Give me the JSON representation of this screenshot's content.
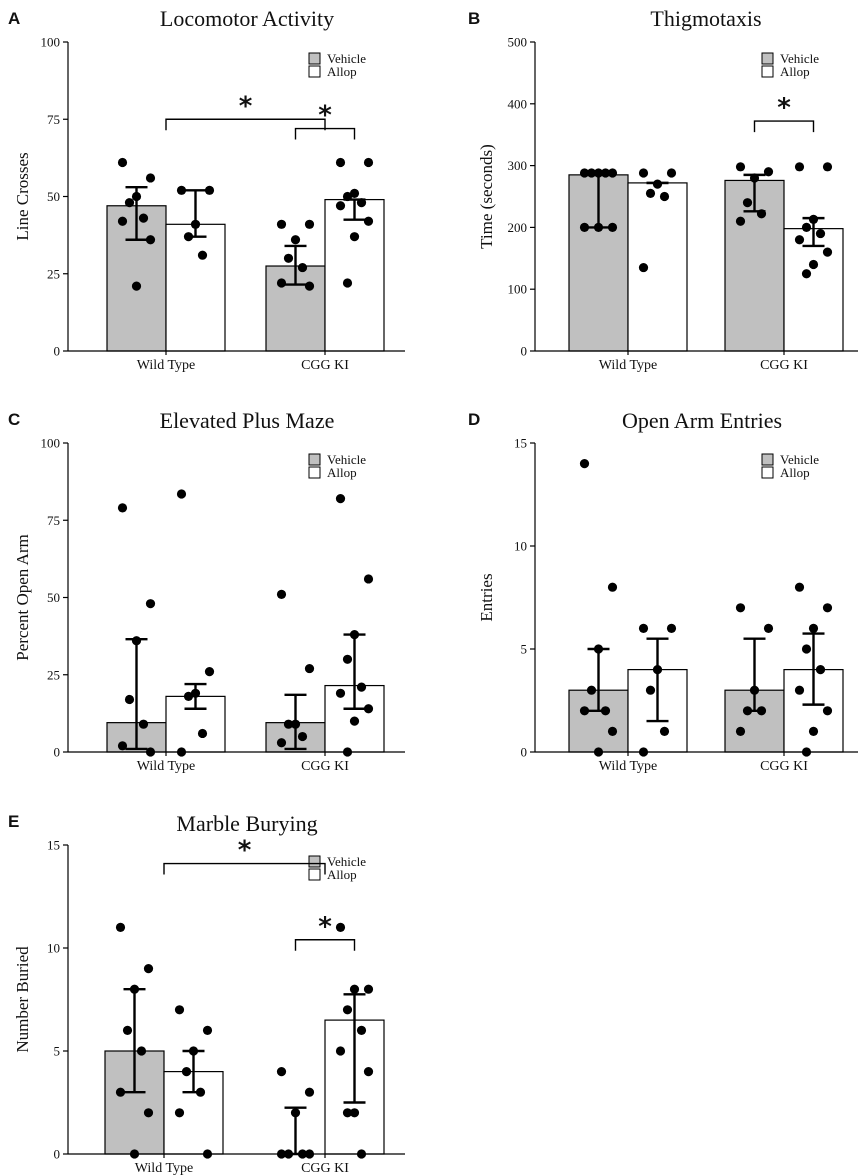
{
  "legend": {
    "vehicle_label": "Vehicle",
    "allop_label": "Allop",
    "vehicle_color": "#c0c0c0",
    "allop_color": "#ffffff"
  },
  "chart_data": [
    {
      "panel": "A",
      "type": "bar",
      "title": "Locomotor Activity",
      "ylabel": "Line Crosses",
      "xlabel": "",
      "ylim": [
        0,
        100
      ],
      "yticks": [
        0,
        25,
        50,
        75,
        100
      ],
      "categories": [
        "Wild Type",
        "CGG KI"
      ],
      "legend_position": "top-right",
      "series": [
        {
          "name": "Vehicle",
          "values": [
            47,
            27.5
          ],
          "err_low": [
            36,
            21.5
          ],
          "err_high": [
            53,
            34
          ],
          "points": [
            [
              61,
              56,
              50,
              48,
              43,
              42,
              36,
              21
            ],
            [
              41,
              41,
              36,
              30,
              27,
              22,
              21
            ]
          ]
        },
        {
          "name": "Allop",
          "values": [
            41,
            49
          ],
          "err_low": [
            37,
            42.5
          ],
          "err_high": [
            52,
            49
          ],
          "points": [
            [
              52,
              52,
              41,
              37,
              31
            ],
            [
              61,
              61,
              51,
              50,
              48,
              47,
              42,
              37,
              22
            ]
          ]
        }
      ],
      "significance": [
        {
          "from": [
            0,
            "center"
          ],
          "to": [
            1,
            "center"
          ],
          "level_value": 75,
          "label": "*"
        },
        {
          "from": [
            1,
            0
          ],
          "to": [
            1,
            1
          ],
          "level_value": 72,
          "label": "*"
        }
      ]
    },
    {
      "panel": "B",
      "type": "bar",
      "title": "Thigmotaxis",
      "ylabel": "Time (seconds)",
      "xlabel": "",
      "ylim": [
        0,
        500
      ],
      "yticks": [
        0,
        100,
        200,
        300,
        400,
        500
      ],
      "categories": [
        "Wild Type",
        "CGG KI"
      ],
      "legend_position": "top-right",
      "series": [
        {
          "name": "Vehicle",
          "values": [
            285,
            276
          ],
          "err_low": [
            200,
            226
          ],
          "err_high": [
            285,
            285
          ],
          "points": [
            [
              288,
              288,
              288,
              288,
              288,
              200,
              200,
              200
            ],
            [
              298,
              290,
              280,
              240,
              222,
              210
            ]
          ]
        },
        {
          "name": "Allop",
          "values": [
            272,
            198
          ],
          "err_low": [
            272,
            170
          ],
          "err_high": [
            272,
            215
          ],
          "points": [
            [
              288,
              288,
              270,
              255,
              250,
              135
            ],
            [
              298,
              298,
              213,
              200,
              190,
              180,
              160,
              140,
              125
            ]
          ]
        }
      ],
      "significance": [
        {
          "from": [
            1,
            0
          ],
          "to": [
            1,
            1
          ],
          "level_value": 372,
          "label": "*"
        }
      ]
    },
    {
      "panel": "C",
      "type": "bar",
      "title": "Elevated Plus Maze",
      "ylabel": "Percent Open Arm",
      "xlabel": "",
      "ylim": [
        0,
        100
      ],
      "yticks": [
        0,
        25,
        50,
        75,
        100
      ],
      "categories": [
        "Wild Type",
        "CGG KI"
      ],
      "legend_position": "top-right",
      "series": [
        {
          "name": "Vehicle",
          "values": [
            9.5,
            9.5
          ],
          "err_low": [
            1,
            1
          ],
          "err_high": [
            36.5,
            18.5
          ],
          "points": [
            [
              79,
              48,
              36,
              17,
              9,
              2,
              0
            ],
            [
              51,
              27,
              9,
              9,
              5,
              3
            ]
          ]
        },
        {
          "name": "Allop",
          "values": [
            18,
            21.5
          ],
          "err_low": [
            14,
            14
          ],
          "err_high": [
            22,
            38
          ],
          "points": [
            [
              83.5,
              26,
              19,
              18,
              6,
              0
            ],
            [
              82,
              56,
              38,
              30,
              21,
              19,
              14,
              10,
              0
            ]
          ]
        }
      ],
      "significance": []
    },
    {
      "panel": "D",
      "type": "bar",
      "title": "Open Arm Entries",
      "ylabel": "Entries",
      "xlabel": "",
      "ylim": [
        0,
        15
      ],
      "yticks": [
        0,
        5,
        10,
        15
      ],
      "categories": [
        "Wild Type",
        "CGG KI"
      ],
      "legend_position": "top-right",
      "series": [
        {
          "name": "Vehicle",
          "values": [
            3,
            3
          ],
          "err_low": [
            2,
            2
          ],
          "err_high": [
            5,
            5.5
          ],
          "points": [
            [
              14,
              8,
              5,
              3,
              2,
              2,
              1,
              0
            ],
            [
              7,
              6,
              3,
              2,
              2,
              1
            ]
          ]
        },
        {
          "name": "Allop",
          "values": [
            4,
            4
          ],
          "err_low": [
            1.5,
            2.3
          ],
          "err_high": [
            5.5,
            5.75
          ],
          "points": [
            [
              6,
              6,
              4,
              3,
              1,
              0
            ],
            [
              8,
              7,
              6,
              5,
              4,
              3,
              2,
              1,
              0
            ]
          ]
        }
      ],
      "significance": []
    },
    {
      "panel": "E",
      "type": "bar",
      "title": "Marble Burying",
      "ylabel": "Number Buried",
      "xlabel": "",
      "ylim": [
        0,
        15
      ],
      "yticks": [
        0,
        5,
        10,
        15
      ],
      "categories": [
        "Wild Type",
        "CGG KI"
      ],
      "legend_position": "top-right",
      "series": [
        {
          "name": "Vehicle",
          "values": [
            5,
            0
          ],
          "err_low": [
            3,
            0
          ],
          "err_high": [
            8,
            2.25
          ],
          "points": [
            [
              11,
              9,
              8,
              6,
              5,
              3,
              2,
              0
            ],
            [
              4,
              3,
              2,
              0,
              0,
              0,
              0
            ]
          ]
        },
        {
          "name": "Allop",
          "values": [
            4,
            6.5
          ],
          "err_low": [
            3,
            2.5
          ],
          "err_high": [
            5,
            7.75
          ],
          "points": [
            [
              7,
              6,
              5,
              4,
              3,
              2,
              0
            ],
            [
              11,
              8,
              8,
              7,
              6,
              5,
              4,
              2,
              2,
              0
            ]
          ]
        }
      ],
      "significance": [
        {
          "from": [
            0,
            "center"
          ],
          "to": [
            1,
            "center"
          ],
          "level_value": 14.1,
          "label": "*"
        },
        {
          "from": [
            1,
            0
          ],
          "to": [
            1,
            1
          ],
          "level_value": 10.4,
          "label": "*"
        }
      ]
    }
  ]
}
